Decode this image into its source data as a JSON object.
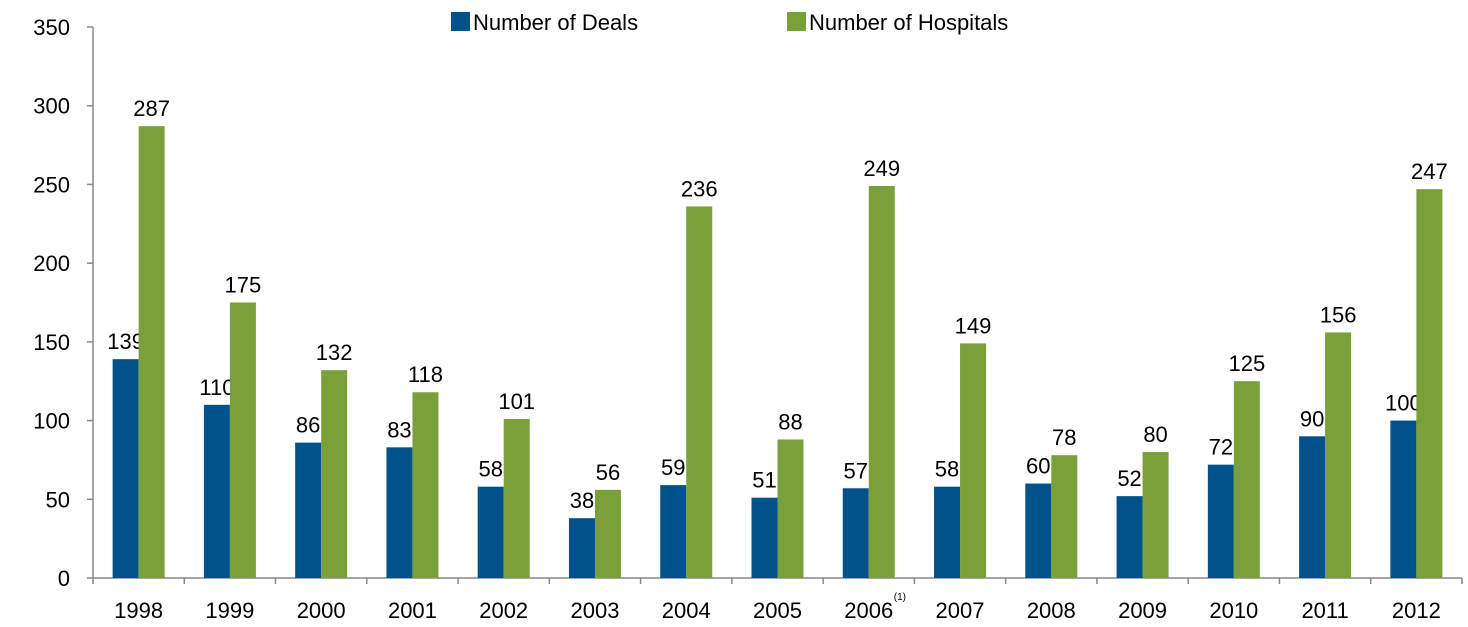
{
  "chart_data": {
    "type": "bar",
    "categories": [
      "1998",
      "1999",
      "2000",
      "2001",
      "2002",
      "2003",
      "2004",
      "2005",
      "2006",
      "2007",
      "2008",
      "2009",
      "2010",
      "2011",
      "2012"
    ],
    "category_notes": [
      null,
      null,
      null,
      null,
      null,
      null,
      null,
      null,
      "(1)",
      null,
      null,
      null,
      null,
      null,
      null
    ],
    "series": [
      {
        "name": "Number of Deals",
        "color": "#00528a",
        "values": [
          139,
          110,
          86,
          83,
          58,
          38,
          59,
          51,
          57,
          58,
          60,
          52,
          72,
          90,
          100
        ]
      },
      {
        "name": "Number of Hospitals",
        "color": "#7aa03a",
        "values": [
          287,
          175,
          132,
          118,
          101,
          56,
          236,
          88,
          249,
          149,
          78,
          80,
          125,
          156,
          247
        ]
      }
    ],
    "ylim": [
      0,
      350
    ],
    "yticks": [
      0,
      50,
      100,
      150,
      200,
      250,
      300,
      350
    ],
    "legend": "top"
  }
}
